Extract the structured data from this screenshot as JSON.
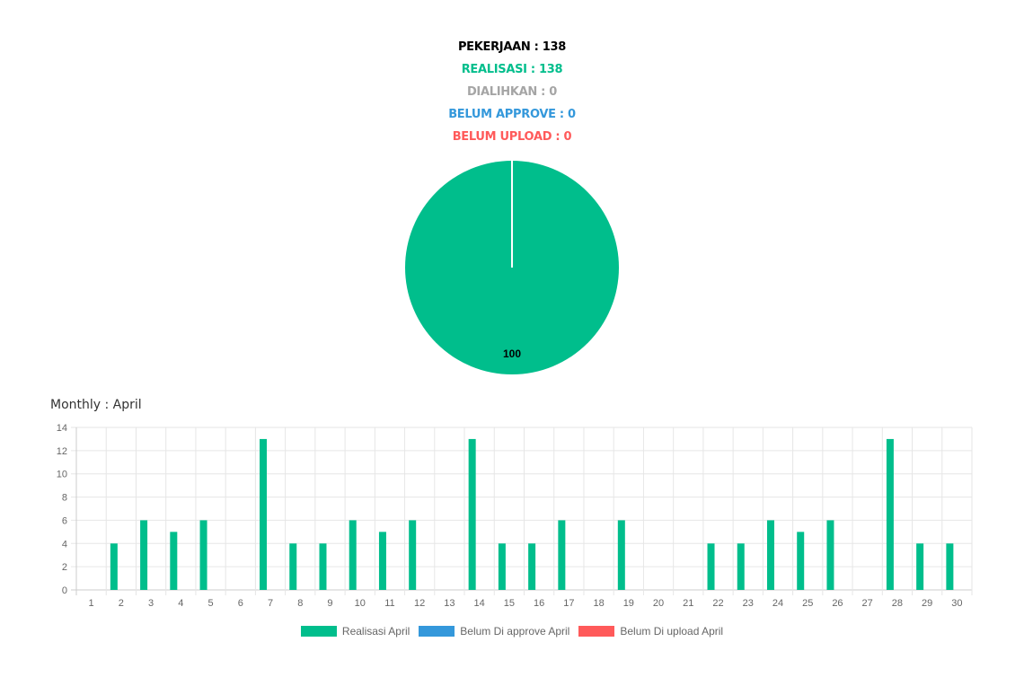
{
  "summary": {
    "pekerjaan": "PEKERJAAN : 138",
    "realisasi": "REALISASI : 138",
    "dialihkan": "DIALIHKAN : 0",
    "belum_approve": "BELUM APPROVE : 0",
    "belum_upload": "BELUM UPLOAD : 0"
  },
  "colors": {
    "realisasi": "#00be8c",
    "dialihkan": "#a5a5a5",
    "belum_approve": "#3498db",
    "belum_upload": "#ff5a5a",
    "pekerjaan": "#000000"
  },
  "chart_data": [
    {
      "type": "pie",
      "labels": [
        "100"
      ],
      "values": [
        100
      ],
      "colors": [
        "#00be8c"
      ]
    },
    {
      "type": "bar",
      "title": "Monthly : April",
      "categories": [
        "1",
        "2",
        "3",
        "4",
        "5",
        "6",
        "7",
        "8",
        "9",
        "10",
        "11",
        "12",
        "13",
        "14",
        "15",
        "16",
        "17",
        "18",
        "19",
        "20",
        "21",
        "22",
        "23",
        "24",
        "25",
        "26",
        "27",
        "28",
        "29",
        "30"
      ],
      "series": [
        {
          "name": "Realisasi April",
          "color": "#00be8c",
          "values": [
            0,
            4,
            6,
            5,
            6,
            0,
            13,
            4,
            4,
            6,
            5,
            6,
            0,
            13,
            4,
            4,
            6,
            0,
            6,
            0,
            0,
            4,
            4,
            6,
            5,
            6,
            0,
            13,
            4,
            4
          ]
        },
        {
          "name": "Belum Di approve April",
          "color": "#3498db",
          "values": [
            0,
            0,
            0,
            0,
            0,
            0,
            0,
            0,
            0,
            0,
            0,
            0,
            0,
            0,
            0,
            0,
            0,
            0,
            0,
            0,
            0,
            0,
            0,
            0,
            0,
            0,
            0,
            0,
            0,
            0
          ]
        },
        {
          "name": "Belum Di upload April",
          "color": "#ff5a5a",
          "values": [
            0,
            0,
            0,
            0,
            0,
            0,
            0,
            0,
            0,
            0,
            0,
            0,
            0,
            0,
            0,
            0,
            0,
            0,
            0,
            0,
            0,
            0,
            0,
            0,
            0,
            0,
            0,
            0,
            0,
            0
          ]
        }
      ],
      "ylim": [
        0,
        14
      ],
      "yticks": [
        0,
        2,
        4,
        6,
        8,
        10,
        12,
        14
      ],
      "grid": true,
      "legend": "bottom"
    }
  ]
}
